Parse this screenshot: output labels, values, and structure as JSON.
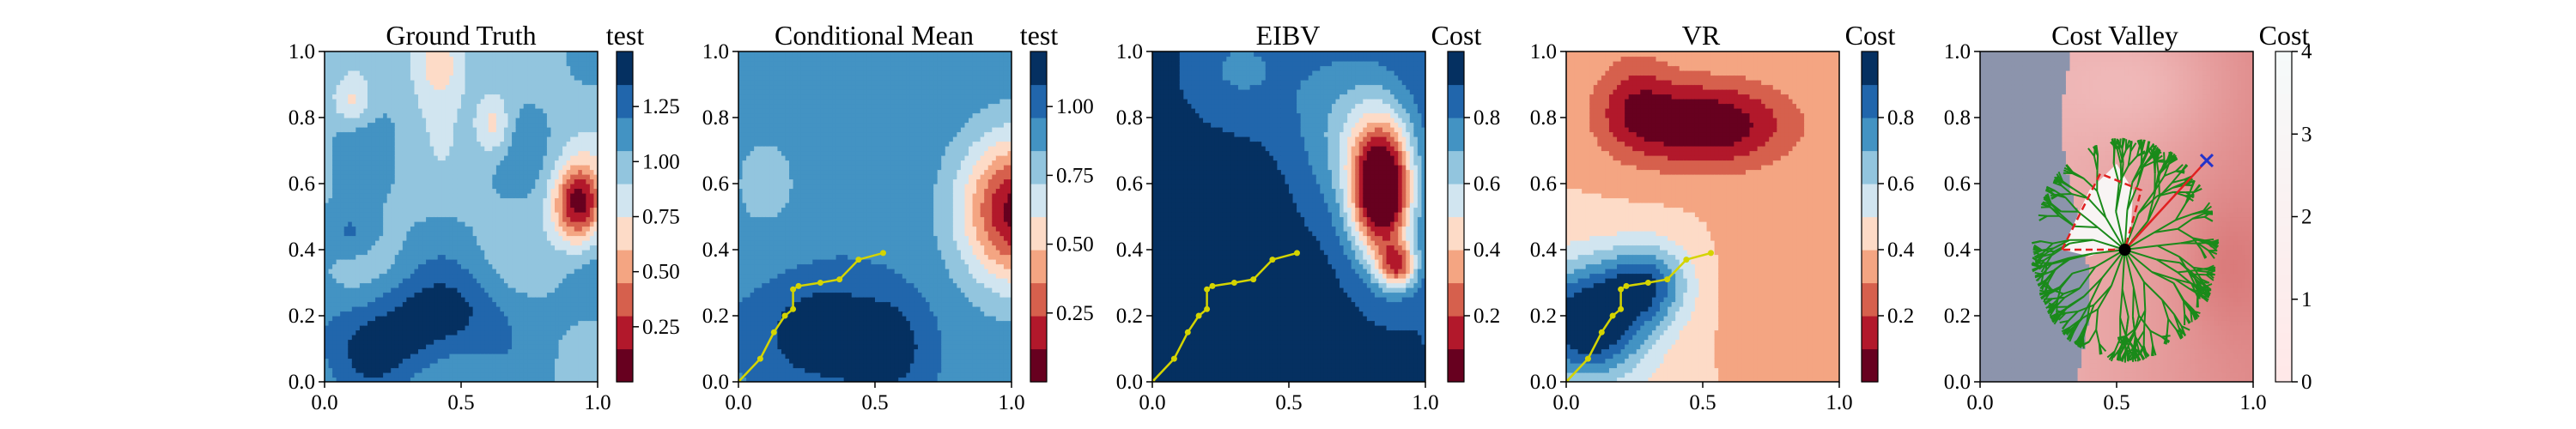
{
  "chart_data": [
    {
      "type": "heatmap",
      "title": "Ground Truth",
      "colorbar_label": "test",
      "colormap": "RdBu (discrete)",
      "xlim": [
        0.0,
        1.0
      ],
      "ylim": [
        0.0,
        1.0
      ],
      "x_ticks": [
        "0.0",
        "0.5",
        "1.0"
      ],
      "y_ticks": [
        "0.0",
        "0.2",
        "0.4",
        "0.6",
        "0.8",
        "1.0"
      ],
      "colorbar_range": [
        0.0,
        1.5
      ],
      "colorbar_ticks": [
        "0.25",
        "0.50",
        "0.75",
        "1.00",
        "1.25"
      ],
      "field_features": {
        "background_level": 1.05,
        "low_blob_center": [
          0.92,
          0.55
        ],
        "low_blob_min": 0.12,
        "high_region_lower_left": [
          0.15,
          0.1
        ],
        "high_region_max": 1.45
      }
    },
    {
      "type": "heatmap",
      "title": "Conditional Mean",
      "colorbar_label": "test",
      "colormap": "RdBu (discrete)",
      "xlim": [
        0.0,
        1.0
      ],
      "ylim": [
        0.0,
        1.0
      ],
      "x_ticks": [
        "0.0",
        "0.5",
        "1.0"
      ],
      "y_ticks": [
        "0.0",
        "0.2",
        "0.4",
        "0.6",
        "0.8",
        "1.0"
      ],
      "colorbar_range": [
        0.0,
        1.2
      ],
      "colorbar_ticks": [
        "0.25",
        "0.50",
        "0.75",
        "1.00"
      ],
      "field_features": {
        "background_level": 0.9,
        "low_blob_center": [
          1.0,
          0.5
        ],
        "low_blob_min": 0.15,
        "high_region_lower_left": [
          0.3,
          0.05
        ],
        "high_region_max": 1.2
      },
      "trajectory": {
        "color": "#d4d400",
        "x": [
          0.0,
          0.08,
          0.13,
          0.17,
          0.2,
          0.2,
          0.22,
          0.3,
          0.37,
          0.44,
          0.53
        ],
        "y": [
          0.0,
          0.07,
          0.15,
          0.2,
          0.22,
          0.28,
          0.29,
          0.3,
          0.31,
          0.37,
          0.39
        ]
      }
    },
    {
      "type": "heatmap",
      "title": "EIBV",
      "colorbar_label": "Cost",
      "colormap": "RdBu (discrete)",
      "xlim": [
        0.0,
        1.0
      ],
      "ylim": [
        0.0,
        1.0
      ],
      "x_ticks": [
        "0.0",
        "0.5",
        "1.0"
      ],
      "y_ticks": [
        "0.0",
        "0.2",
        "0.4",
        "0.6",
        "0.8",
        "1.0"
      ],
      "colorbar_range": [
        0.0,
        1.0
      ],
      "colorbar_ticks": [
        "0.2",
        "0.4",
        "0.6",
        "0.8"
      ],
      "field_features": {
        "background_level": 1.0,
        "low_ridge_center": [
          0.85,
          0.55
        ],
        "low_ridge_min": 0.05
      },
      "trajectory": {
        "color": "#d4d400",
        "x": [
          0.0,
          0.08,
          0.13,
          0.17,
          0.2,
          0.2,
          0.22,
          0.3,
          0.37,
          0.44,
          0.53
        ],
        "y": [
          0.0,
          0.07,
          0.15,
          0.2,
          0.22,
          0.28,
          0.29,
          0.3,
          0.31,
          0.37,
          0.39
        ]
      }
    },
    {
      "type": "heatmap",
      "title": "VR",
      "colorbar_label": "Cost",
      "colormap": "RdBu (discrete)",
      "xlim": [
        0.0,
        1.0
      ],
      "ylim": [
        0.0,
        1.0
      ],
      "x_ticks": [
        "0.0",
        "0.5",
        "1.0"
      ],
      "y_ticks": [
        "0.0",
        "0.2",
        "0.4",
        "0.6",
        "0.8",
        "1.0"
      ],
      "colorbar_range": [
        0.0,
        1.0
      ],
      "colorbar_ticks": [
        "0.2",
        "0.4",
        "0.6",
        "0.8"
      ],
      "field_features": {
        "low_region_center": [
          0.55,
          0.75
        ],
        "low_region_min": 0.02,
        "high_region_lower_left": [
          0.1,
          0.15
        ],
        "high_region_max": 1.0
      },
      "trajectory": {
        "color": "#d4d400",
        "x": [
          0.0,
          0.08,
          0.13,
          0.17,
          0.2,
          0.2,
          0.22,
          0.3,
          0.37,
          0.44,
          0.53
        ],
        "y": [
          0.0,
          0.07,
          0.15,
          0.2,
          0.22,
          0.28,
          0.29,
          0.3,
          0.31,
          0.37,
          0.39
        ]
      }
    },
    {
      "type": "heatmap",
      "title": "Cost Valley",
      "colorbar_label": "Cost",
      "colormap": "Reds with blue-grey valley",
      "xlim": [
        0.0,
        1.0
      ],
      "ylim": [
        0.0,
        1.0
      ],
      "x_ticks": [
        "0.0",
        "0.5",
        "1.0"
      ],
      "y_ticks": [
        "0.0",
        "0.2",
        "0.4",
        "0.6",
        "0.8",
        "1.0"
      ],
      "colorbar_range": [
        0.0,
        4.0
      ],
      "colorbar_ticks": [
        "0",
        "1",
        "2",
        "3",
        "4"
      ],
      "current_location": [
        0.53,
        0.4
      ],
      "target_marker": [
        0.83,
        0.67
      ],
      "budget_polygon": {
        "color": "#e02020",
        "x": [
          0.3,
          0.44,
          0.59,
          0.53,
          0.3
        ],
        "y": [
          0.4,
          0.63,
          0.58,
          0.4,
          0.4
        ]
      },
      "tree_color": "#1a8a1a"
    }
  ]
}
